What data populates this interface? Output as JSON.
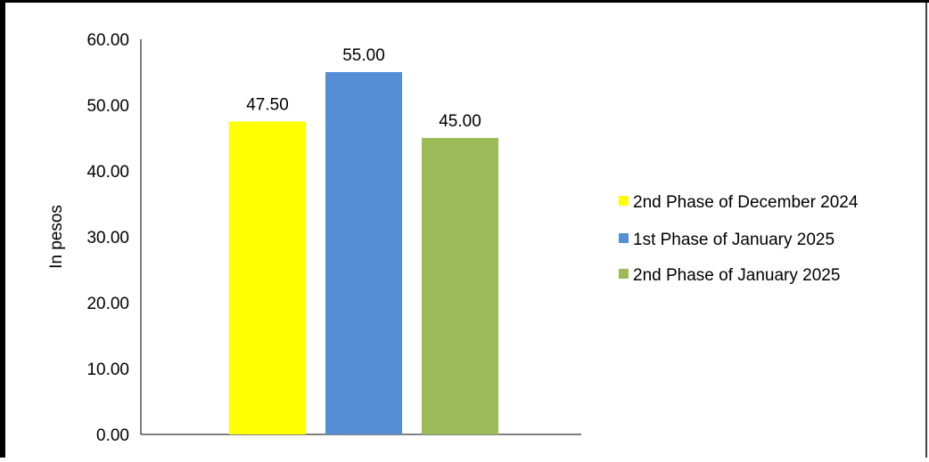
{
  "chart_data": {
    "type": "bar",
    "title": "",
    "xlabel": "",
    "ylabel": "In pesos",
    "ylim": [
      0,
      60
    ],
    "yticks": [
      "0.00",
      "10.00",
      "20.00",
      "30.00",
      "40.00",
      "50.00",
      "60.00"
    ],
    "grid": false,
    "legend_position": "right",
    "series": [
      {
        "name": "2nd Phase of December 2024",
        "value": 47.5,
        "label": "47.50",
        "color": "#ffff00"
      },
      {
        "name": "1st Phase of January 2025",
        "value": 55.0,
        "label": "55.00",
        "color": "#558ed5"
      },
      {
        "name": "2nd Phase of January 2025",
        "value": 45.0,
        "label": "45.00",
        "color": "#9bbb59"
      }
    ]
  }
}
